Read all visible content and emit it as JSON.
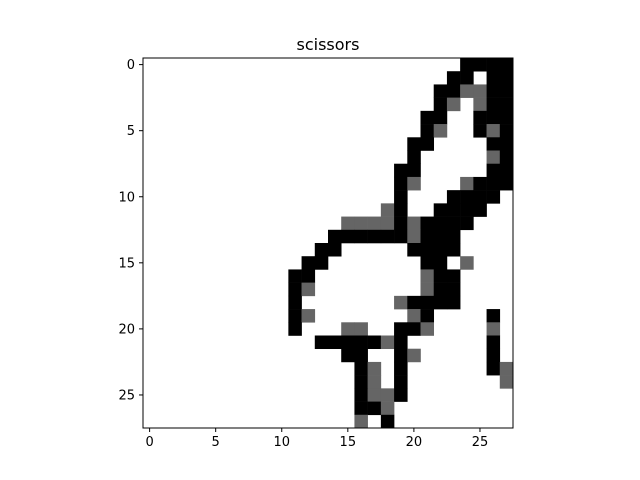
{
  "chart_data": {
    "type": "heatmap",
    "title": "scissors",
    "xlabel": "",
    "ylabel": "",
    "colormap": "gray_r",
    "value_range": [
      0,
      255
    ],
    "xlim": [
      -0.5,
      27.5
    ],
    "ylim": [
      27.5,
      -0.5
    ],
    "x_ticks": [
      0,
      5,
      10,
      15,
      20,
      25
    ],
    "y_ticks": [
      0,
      5,
      10,
      15,
      20,
      25
    ],
    "grid": false,
    "width": 28,
    "height": 28,
    "rows": [
      "0000000000000000000000002222",
      "0000000000000000000000022022",
      "0000000000000000000000221122",
      "0000000000000000000000210122",
      "0000000000000000000002200222",
      "0000000000000000000002100212",
      "0000000000000000000022000022",
      "0000000000000000000020000012",
      "0000000000000000000220000022",
      "0000000000000000000210001222",
      "0000000000000000000200022220",
      "0000000000000000001200222200",
      "0000000000000001111212222000",
      "0000000000000022222212220000",
      "0000000000000220000022220000",
      "0000000000002200000002201000",
      "0000000000022000000001220000",
      "0000000000021000000001220000",
      "0000000000020000000122220000",
      "0000000000021000000012000020",
      "0000000000020001100221000010",
      "0000000000000222221200000020",
      "0000000000000002200210000020",
      "0000000000000000210200000021",
      "0000000000000000210200000001",
      "0000000000000000211200000000",
      "0000000000000000221000000000",
      "0000000000000000102000000000"
    ]
  }
}
